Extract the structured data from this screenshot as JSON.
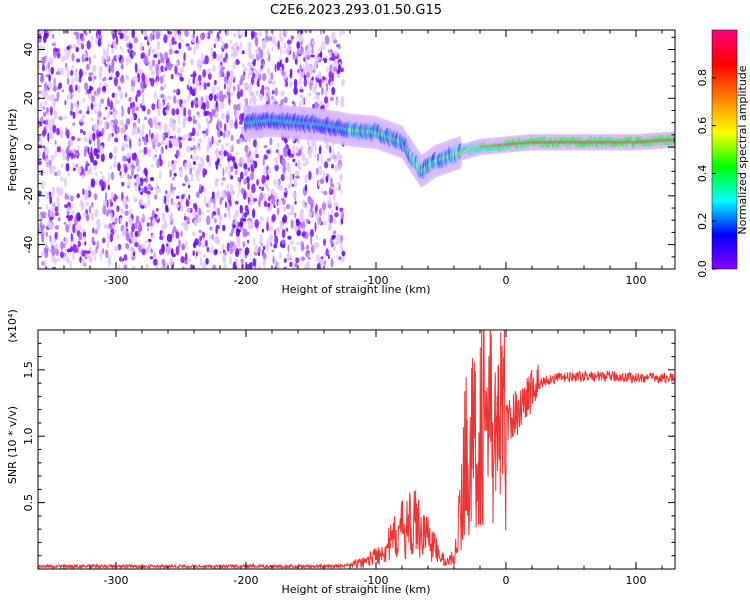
{
  "title": "C2E6.2023.293.01.50.G15",
  "chart_data": [
    {
      "type": "heatmap",
      "xlabel": "Height of straight line (km)",
      "ylabel": "Frequency (Hz)",
      "xlim": [
        -360,
        130
      ],
      "ylim": [
        -50,
        48
      ],
      "x_ticks": [
        -300,
        -200,
        -100,
        0,
        100
      ],
      "y_ticks": [
        -40,
        -20,
        0,
        20,
        40
      ],
      "colorbar": {
        "label": "Normalized spectral amplitude",
        "range": [
          0,
          1
        ],
        "ticks": [
          0.0,
          0.2,
          0.4,
          0.6,
          0.8
        ],
        "colors": [
          "#ffffff",
          "#e6c8ff",
          "#8a00ff",
          "#0000ff",
          "#00ffff",
          "#00ff00",
          "#ffff00",
          "#ff8000",
          "#ff0000",
          "#ff0080"
        ]
      },
      "features": [
        {
          "name": "scattered noise",
          "x_range": [
            -360,
            -125
          ],
          "freq_range": [
            -50,
            48
          ],
          "amplitude": 0.15
        },
        {
          "name": "signal trace",
          "points": [
            [
              -200,
              10
            ],
            [
              -180,
              11
            ],
            [
              -160,
              10
            ],
            [
              -140,
              9
            ],
            [
              -120,
              7
            ],
            [
              -100,
              6
            ],
            [
              -80,
              2
            ],
            [
              -65,
              -10
            ],
            [
              -55,
              -6
            ],
            [
              -40,
              -3
            ],
            [
              -20,
              0
            ],
            [
              0,
              1
            ],
            [
              20,
              2
            ],
            [
              60,
              2
            ],
            [
              100,
              2
            ],
            [
              130,
              3
            ]
          ]
        }
      ]
    },
    {
      "type": "line",
      "xlabel": "Height of straight line (km)",
      "ylabel": "SNR (10 * v/v)",
      "yscale_note": "(x10⁴)",
      "xlim": [
        -360,
        130
      ],
      "ylim": [
        0,
        1.8
      ],
      "x_ticks": [
        -300,
        -200,
        -100,
        0,
        100
      ],
      "y_ticks": [
        "0.5",
        "1.0",
        "1.5"
      ],
      "line_color": "#ee3333",
      "series": [
        {
          "x": [
            -360,
            -300,
            -200,
            -130,
            -120,
            -110,
            -100,
            -90,
            -80,
            -70,
            -60,
            -50,
            -45,
            -40,
            -35,
            -30,
            -25,
            -20,
            -15,
            -10,
            -5,
            0,
            10,
            20,
            30,
            40,
            60,
            80,
            100,
            120,
            130
          ],
          "values": [
            0.02,
            0.02,
            0.02,
            0.02,
            0.03,
            0.05,
            0.1,
            0.18,
            0.3,
            0.35,
            0.25,
            0.08,
            0.05,
            0.1,
            0.4,
            1.0,
            0.9,
            1.1,
            1.2,
            1.0,
            1.05,
            1.1,
            1.2,
            1.35,
            1.42,
            1.44,
            1.45,
            1.45,
            1.44,
            1.44,
            1.44
          ]
        }
      ]
    }
  ]
}
